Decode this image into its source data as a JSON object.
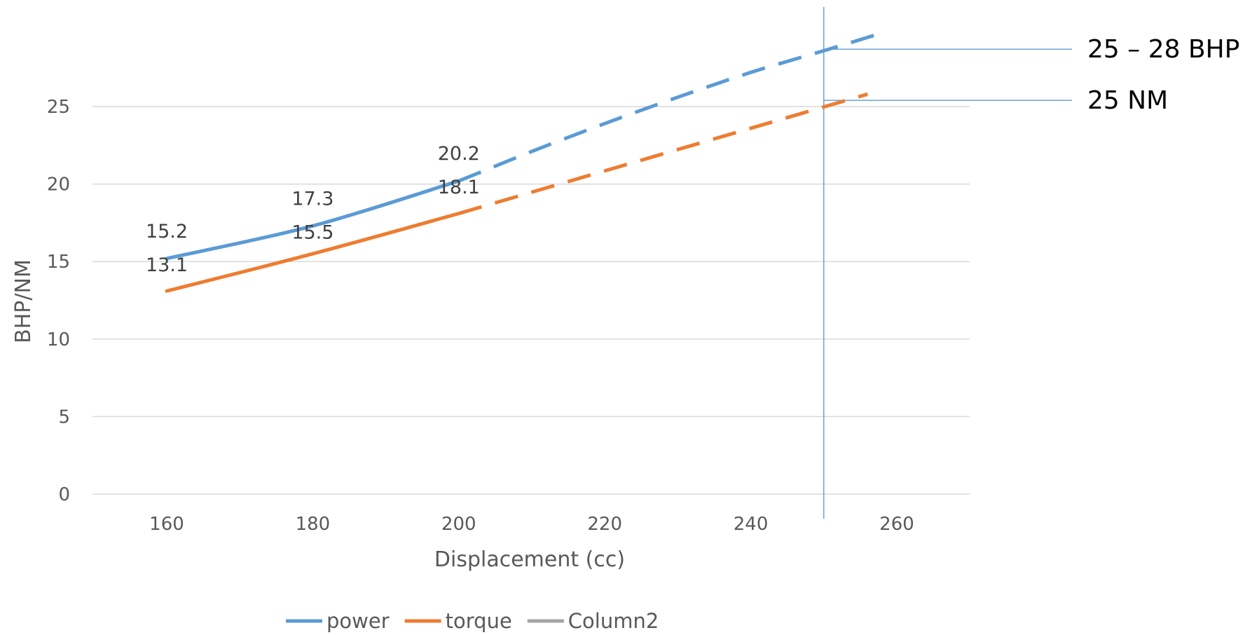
{
  "chart_data": {
    "type": "line",
    "xlabel": "Displacement (cc)",
    "ylabel": "BHP/NM",
    "xlim": [
      150,
      270
    ],
    "ylim": [
      0,
      25
    ],
    "x_ticks": [
      160,
      180,
      200,
      220,
      240,
      260
    ],
    "y_ticks": [
      0,
      5,
      10,
      15,
      20,
      25
    ],
    "grid": "horizontal",
    "legend_position": "bottom",
    "series": [
      {
        "name": "power",
        "color": "#5B9BD5",
        "x": [
          160,
          180,
          200
        ],
        "values": [
          15.2,
          17.3,
          20.2
        ],
        "labels": [
          "15.2",
          "17.3",
          "20.2"
        ],
        "projection": {
          "style": "dashed",
          "x": [
            200,
            210,
            220,
            230,
            240,
            250,
            257
          ],
          "values": [
            20.2,
            22.1,
            23.9,
            25.6,
            27.2,
            28.6,
            29.6
          ]
        }
      },
      {
        "name": "torque",
        "color": "#ED7D31",
        "x": [
          160,
          180,
          200
        ],
        "values": [
          13.1,
          15.5,
          18.1
        ],
        "labels": [
          "13.1",
          "15.5",
          "18.1"
        ],
        "projection": {
          "style": "dashed",
          "x": [
            200,
            256
          ],
          "values": [
            18.1,
            25.8
          ]
        }
      },
      {
        "name": "Column2",
        "color": "#A5A5A5",
        "x": [],
        "values": []
      }
    ],
    "reference_line": {
      "x": 250,
      "color": "#5B9BD5"
    },
    "annotations": [
      {
        "text": "25 – 28 BHP",
        "y": 28.7
      },
      {
        "text": "25 NM",
        "y": 25.4
      }
    ]
  }
}
